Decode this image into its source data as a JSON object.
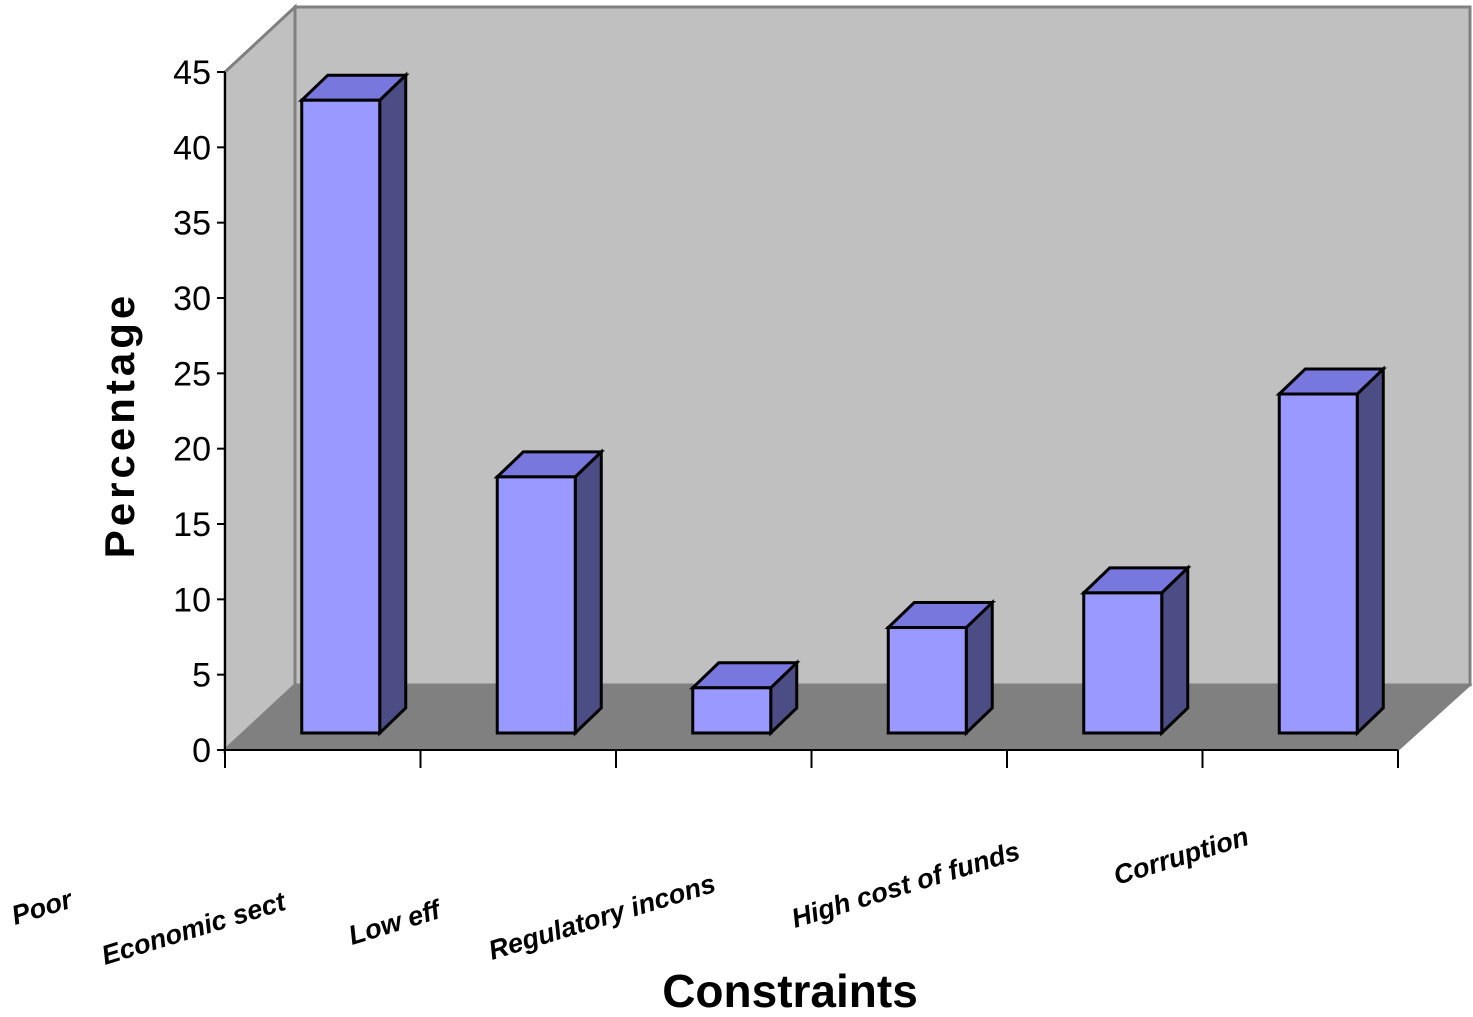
{
  "chart_data": {
    "type": "bar",
    "style": "3d-column",
    "categories": [
      "Poor",
      "Economic sect",
      "Low eff",
      "Regulatory incons",
      "High cost of funds",
      "Corruption"
    ],
    "values": [
      42,
      17,
      3,
      7,
      9.3,
      22.5
    ],
    "xlabel": "Constraints",
    "ylabel": "Percentage",
    "ylim": [
      0,
      45
    ],
    "yticks": [
      0,
      5,
      10,
      15,
      20,
      25,
      30,
      35,
      40,
      45
    ],
    "grid": false,
    "legend": "none",
    "colors": {
      "bar_front": "#9999ff",
      "bar_top": "#7777dd",
      "bar_side": "#4d4d86",
      "back_wall": "#c0c0c0",
      "floor": "#808080",
      "edge": "#000000"
    }
  }
}
